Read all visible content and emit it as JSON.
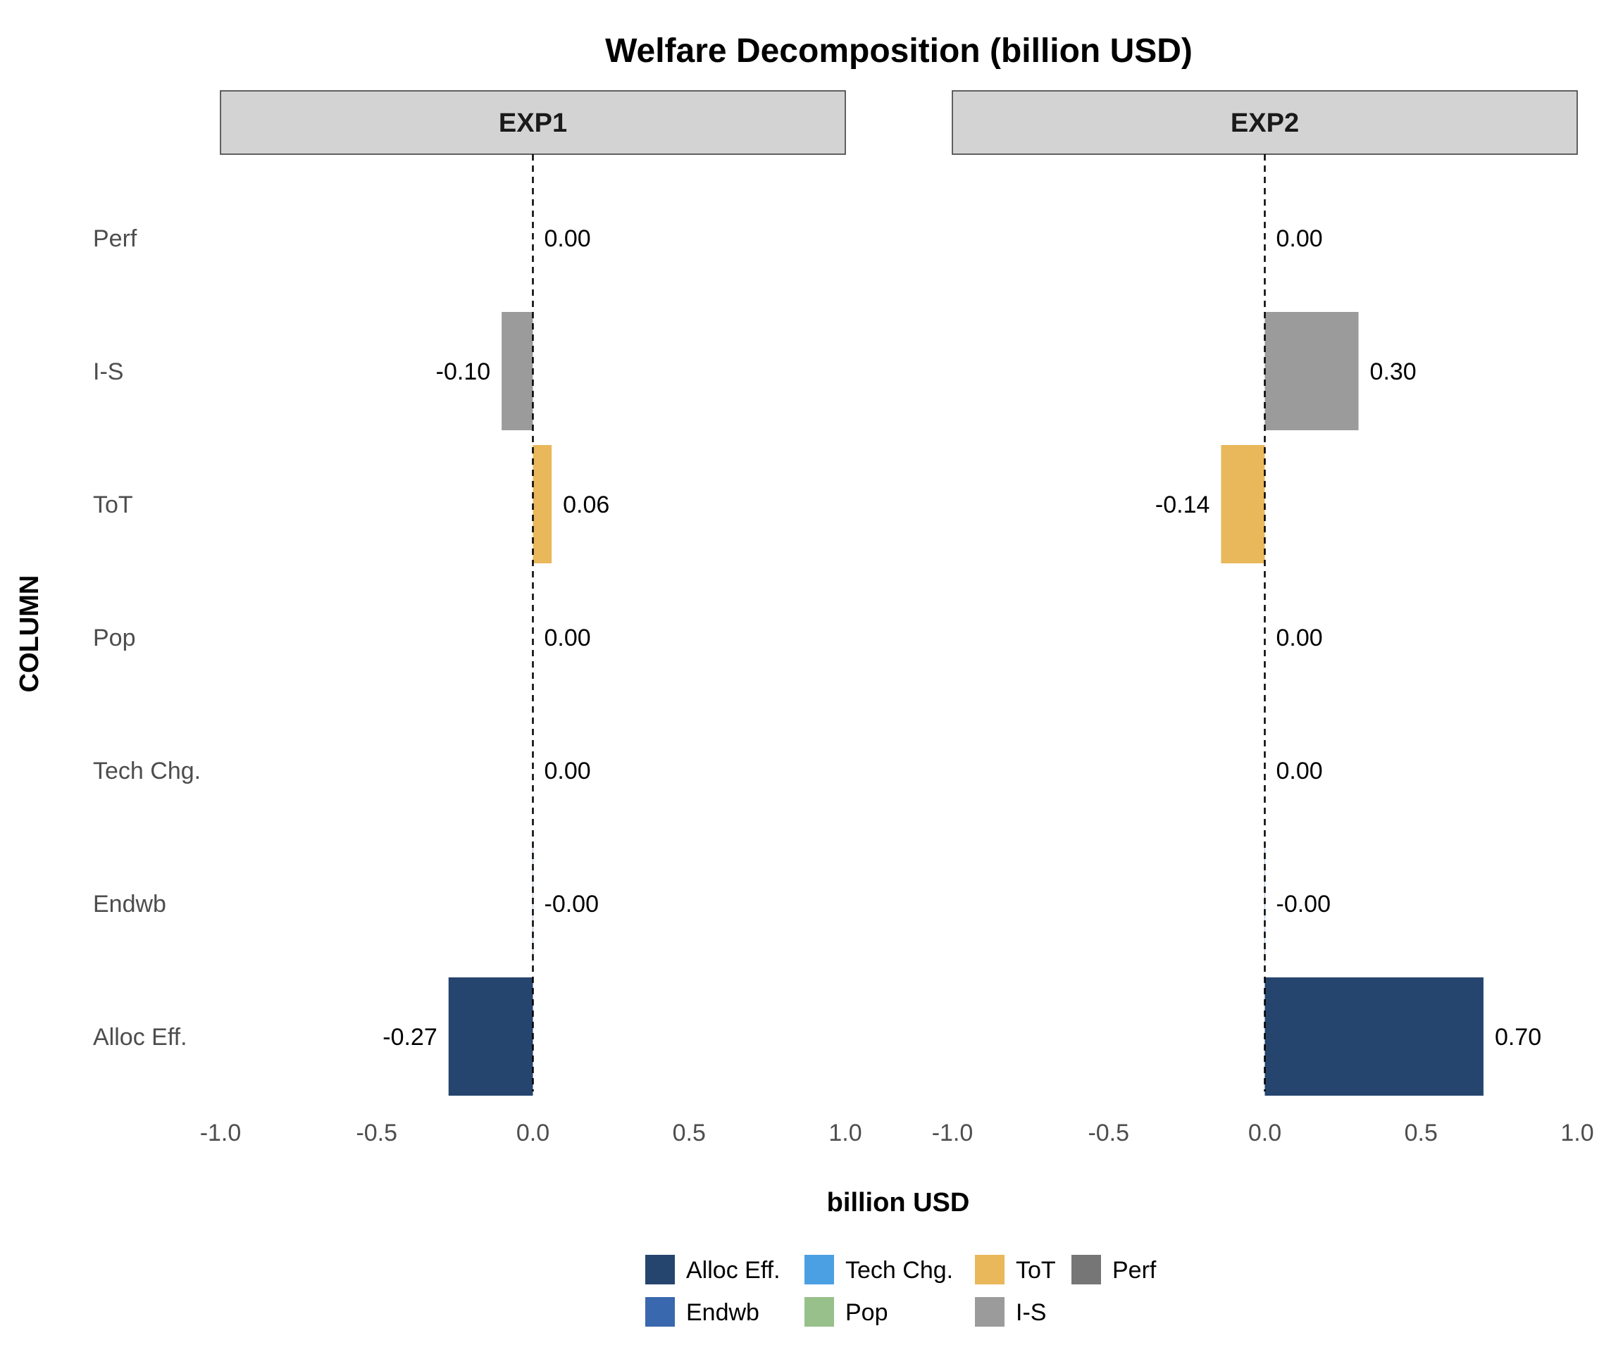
{
  "chart_data": {
    "type": "bar",
    "orientation": "horizontal",
    "title": "Welfare Decomposition (billion USD)",
    "xlabel": "billion USD",
    "ylabel": "COLUMN",
    "xlim": [
      -1.0,
      1.0
    ],
    "x_ticks": [
      -1.0,
      -0.5,
      0.0,
      0.5,
      1.0
    ],
    "x_tick_labels": [
      "-1.0",
      "-0.5",
      "0.0",
      "0.5",
      "1.0"
    ],
    "categories": [
      "Perf",
      "I-S",
      "ToT",
      "Pop",
      "Tech Chg.",
      "Endwb",
      "Alloc Eff."
    ],
    "colors": {
      "Alloc Eff.": "#26456E",
      "Endwb": "#3A68AE",
      "Tech Chg.": "#4BA0E3",
      "Pop": "#97C08A",
      "ToT": "#E9B85A",
      "I-S": "#9B9B9B",
      "Perf": "#767676"
    },
    "reference_line": 0,
    "grid": false,
    "legend_position": "bottom",
    "legend": [
      [
        "Alloc Eff.",
        "Tech Chg.",
        "ToT",
        "Perf"
      ],
      [
        "Endwb",
        "Pop",
        "I-S"
      ]
    ],
    "panels": [
      {
        "name": "EXP1",
        "values": [
          0.0,
          -0.1,
          0.06,
          0.0,
          0.0,
          -0.001,
          -0.27
        ],
        "labels": [
          "0.00",
          "-0.10",
          "0.06",
          "0.00",
          "0.00",
          "-0.00",
          "-0.27"
        ]
      },
      {
        "name": "EXP2",
        "values": [
          0.0,
          0.3,
          -0.14,
          0.0,
          0.0,
          -0.001,
          0.7
        ],
        "labels": [
          "0.00",
          "0.30",
          "-0.14",
          "0.00",
          "0.00",
          "-0.00",
          "0.70"
        ]
      }
    ]
  }
}
